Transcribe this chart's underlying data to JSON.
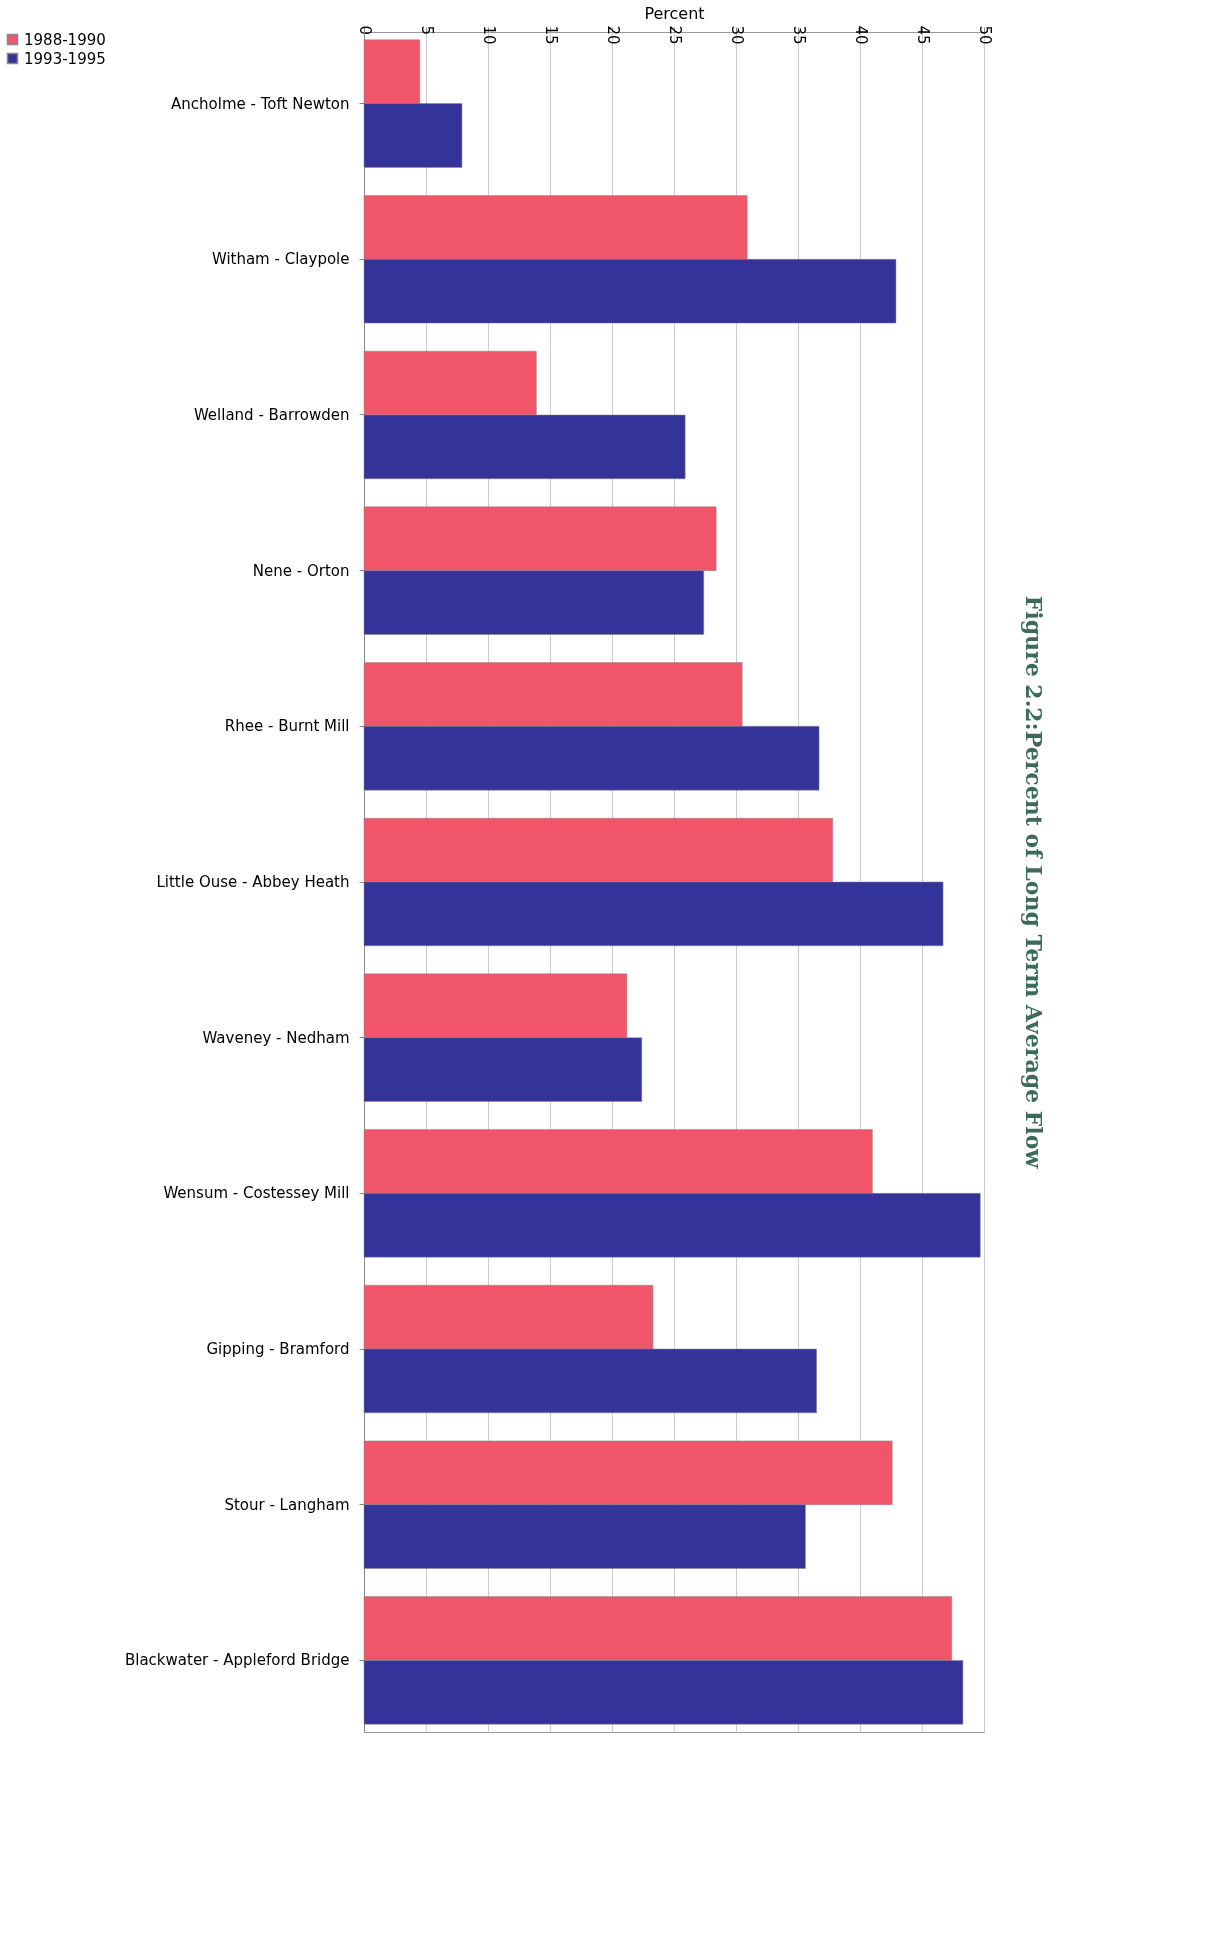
{
  "chart_data": {
    "type": "bar",
    "orientation": "horizontal",
    "title": "Figure 2.2:Percent of Long Term Average Flow",
    "xlabel": "Percent",
    "categories": [
      "Ancholme - Toft Newton",
      "Witham - Claypole",
      "Welland - Barrowden",
      "Nene - Orton",
      "Rhee - Burnt Mill",
      "Little Ouse - Abbey Heath",
      "Waveney - Nedham",
      "Wensum - Costessey Mill",
      "Gipping - Bramford",
      "Stour - Langham",
      "Blackwater - Appleford Bridge"
    ],
    "series": [
      {
        "name": "1988-1990",
        "color": "#f0556a",
        "values": [
          4.5,
          30.9,
          13.9,
          28.4,
          30.5,
          37.8,
          21.2,
          41.0,
          23.3,
          42.6,
          47.4
        ]
      },
      {
        "name": "1993-1995",
        "color": "#33339a",
        "values": [
          7.9,
          42.9,
          25.9,
          27.4,
          36.7,
          46.7,
          22.4,
          49.7,
          36.5,
          35.6,
          48.3
        ]
      }
    ],
    "xlim": [
      0,
      50
    ],
    "xticks": [
      0,
      5,
      10,
      15,
      20,
      25,
      30,
      35,
      40,
      45,
      50
    ],
    "grid": "x",
    "legend": "left"
  }
}
